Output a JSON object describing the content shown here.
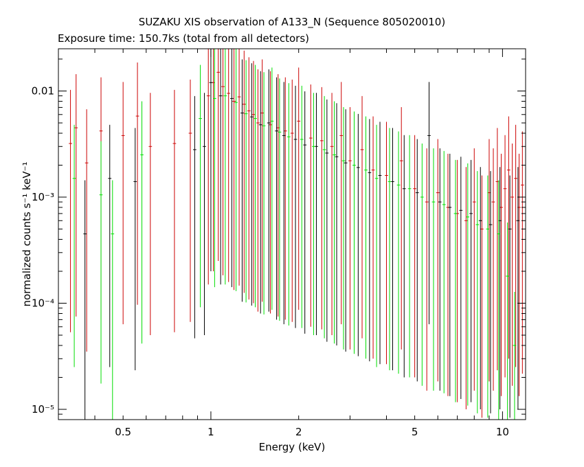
{
  "chart_data": {
    "type": "scatter",
    "title": "SUZAKU XIS observation of A133_N (Sequence 805020010)",
    "subtitle": "Exposure time: 150.7ks (total from all detectors)",
    "xlabel": "Energy (keV)",
    "ylabel": "normalized counts s⁻¹ keV⁻¹",
    "xscale": "log",
    "yscale": "log",
    "xlim": [
      0.3,
      12
    ],
    "ylim": [
      8e-06,
      0.025
    ],
    "grid": false,
    "x_ticks": [
      {
        "value": 0.5,
        "label": "0.5"
      },
      {
        "value": 1,
        "label": "1"
      },
      {
        "value": 2,
        "label": "2"
      },
      {
        "value": 5,
        "label": "5"
      },
      {
        "value": 10,
        "label": "10"
      }
    ],
    "y_ticks": [
      {
        "value": 1e-05,
        "label": "10⁻⁵"
      },
      {
        "value": 0.0001,
        "label": "10⁻⁴"
      },
      {
        "value": 0.001,
        "label": "10⁻³"
      },
      {
        "value": 0.01,
        "label": "0.01"
      }
    ],
    "series": [
      {
        "color": "#cc0000",
        "points": [
          [
            0.33,
            0.0032
          ],
          [
            0.345,
            0.0045
          ],
          [
            0.375,
            0.0021
          ],
          [
            0.42,
            0.0042
          ],
          [
            0.5,
            0.0038
          ],
          [
            0.56,
            0.0058
          ],
          [
            0.62,
            0.003
          ],
          [
            0.75,
            0.0032
          ],
          [
            0.85,
            0.004
          ],
          [
            0.98,
            0.009
          ],
          [
            1.02,
            0.012
          ],
          [
            1.06,
            0.015
          ],
          [
            1.1,
            0.011
          ],
          [
            1.15,
            0.0095
          ],
          [
            1.2,
            0.008
          ],
          [
            1.25,
            0.0088
          ],
          [
            1.3,
            0.0075
          ],
          [
            1.35,
            0.0065
          ],
          [
            1.4,
            0.006
          ],
          [
            1.45,
            0.005
          ],
          [
            1.5,
            0.0062
          ],
          [
            1.6,
            0.0048
          ],
          [
            1.7,
            0.0045
          ],
          [
            1.8,
            0.0042
          ],
          [
            1.9,
            0.004
          ],
          [
            2.0,
            0.0052
          ],
          [
            2.2,
            0.0036
          ],
          [
            2.4,
            0.0034
          ],
          [
            2.6,
            0.003
          ],
          [
            2.8,
            0.0038
          ],
          [
            3.0,
            0.0022
          ],
          [
            3.3,
            0.0028
          ],
          [
            3.6,
            0.0018
          ],
          [
            4.0,
            0.0016
          ],
          [
            4.5,
            0.0022
          ],
          [
            5.0,
            0.0012
          ],
          [
            5.5,
            0.0009
          ],
          [
            6.0,
            0.0011
          ],
          [
            6.5,
            0.0008
          ],
          [
            7.0,
            0.0007
          ],
          [
            7.5,
            0.0006
          ],
          [
            8.0,
            0.0009
          ],
          [
            8.5,
            0.0005
          ],
          [
            9.0,
            0.0011
          ],
          [
            9.3,
            0.0009
          ],
          [
            9.6,
            0.0014
          ],
          [
            9.9,
            0.0008
          ],
          [
            10.2,
            0.0012
          ],
          [
            10.5,
            0.0018
          ],
          [
            10.8,
            0.001
          ],
          [
            11.1,
            0.0015
          ],
          [
            11.4,
            0.0008
          ],
          [
            11.7,
            0.0013
          ]
        ]
      },
      {
        "color": "#000000",
        "points": [
          [
            0.37,
            0.00045
          ],
          [
            0.45,
            0.0015
          ],
          [
            0.55,
            0.0014
          ],
          [
            0.88,
            0.0028
          ],
          [
            0.95,
            0.003
          ],
          [
            1.0,
            0.012
          ],
          [
            1.08,
            0.009
          ],
          [
            1.18,
            0.0085
          ],
          [
            1.28,
            0.0062
          ],
          [
            1.38,
            0.0057
          ],
          [
            1.48,
            0.0048
          ],
          [
            1.58,
            0.005
          ],
          [
            1.68,
            0.0042
          ],
          [
            1.78,
            0.0038
          ],
          [
            1.95,
            0.0035
          ],
          [
            2.1,
            0.0031
          ],
          [
            2.3,
            0.003
          ],
          [
            2.5,
            0.0026
          ],
          [
            2.7,
            0.0024
          ],
          [
            2.9,
            0.0021
          ],
          [
            3.2,
            0.0019
          ],
          [
            3.5,
            0.0017
          ],
          [
            3.8,
            0.0016
          ],
          [
            4.2,
            0.0014
          ],
          [
            4.6,
            0.0012
          ],
          [
            5.1,
            0.0011
          ],
          [
            5.6,
            0.0038
          ],
          [
            6.1,
            0.0009
          ],
          [
            6.6,
            0.0008
          ],
          [
            7.2,
            0.00075
          ],
          [
            7.8,
            0.0007
          ],
          [
            8.4,
            0.0006
          ],
          [
            9.1,
            0.00055
          ],
          [
            9.8,
            0.0006
          ],
          [
            10.6,
            0.0005
          ],
          [
            11.3,
            0.0006
          ]
        ]
      },
      {
        "color": "#00dd00",
        "points": [
          [
            0.34,
            0.0015
          ],
          [
            0.42,
            0.00105
          ],
          [
            0.46,
            0.00045
          ],
          [
            0.58,
            0.0025
          ],
          [
            0.92,
            0.0055
          ],
          [
            1.03,
            0.0085
          ],
          [
            1.12,
            0.009
          ],
          [
            1.22,
            0.0078
          ],
          [
            1.32,
            0.0061
          ],
          [
            1.42,
            0.0055
          ],
          [
            1.52,
            0.0047
          ],
          [
            1.62,
            0.0052
          ],
          [
            1.72,
            0.0041
          ],
          [
            1.85,
            0.0037
          ],
          [
            2.05,
            0.0035
          ],
          [
            2.25,
            0.003
          ],
          [
            2.45,
            0.0028
          ],
          [
            2.65,
            0.0025
          ],
          [
            2.85,
            0.0022
          ],
          [
            3.1,
            0.002
          ],
          [
            3.4,
            0.0018
          ],
          [
            3.7,
            0.0015
          ],
          [
            4.1,
            0.0014
          ],
          [
            4.4,
            0.0013
          ],
          [
            4.8,
            0.0012
          ],
          [
            5.3,
            0.001
          ],
          [
            5.8,
            0.0009
          ],
          [
            6.3,
            0.00085
          ],
          [
            6.9,
            0.0007
          ],
          [
            7.6,
            0.00065
          ],
          [
            8.2,
            0.00055
          ],
          [
            8.9,
            0.0005
          ],
          [
            9.7,
            0.00045
          ],
          [
            10.4,
            0.00018
          ],
          [
            11.0,
            4e-05
          ]
        ]
      }
    ]
  }
}
